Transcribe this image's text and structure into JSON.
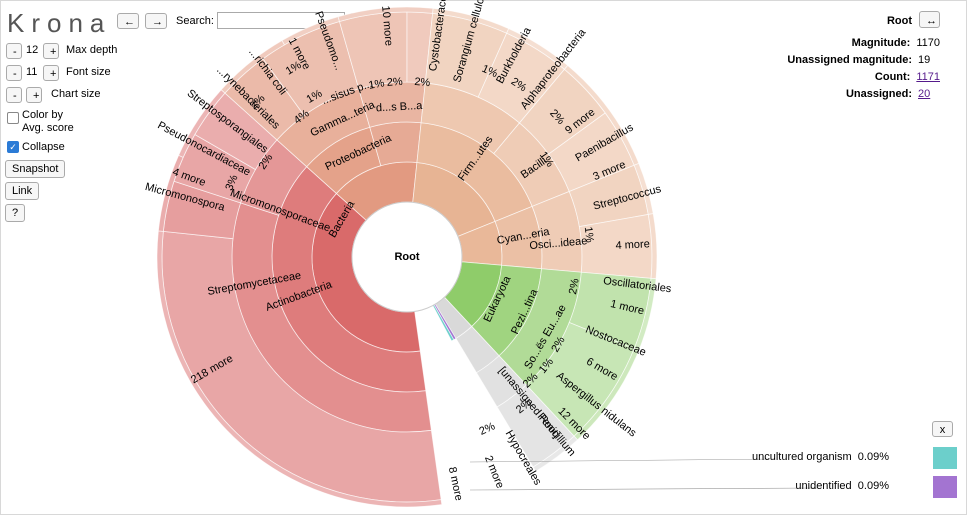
{
  "app": {
    "logo": "Krona"
  },
  "toolbar": {
    "back": "←",
    "forward": "→",
    "search_label": "Search:",
    "search_value": "",
    "search_clear": "x"
  },
  "controls": {
    "max_depth": {
      "label": "Max depth",
      "value": "12",
      "minus": "-",
      "plus": "+"
    },
    "font_size": {
      "label": "Font size",
      "value": "11",
      "minus": "-",
      "plus": "+"
    },
    "chart_size": {
      "label": "Chart size",
      "minus": "-",
      "plus": "+"
    },
    "color_by": {
      "label_line1": "Color by",
      "label_line2": "Avg. score",
      "checked": false
    },
    "collapse": {
      "label": "Collapse",
      "checked": true
    },
    "snapshot": "Snapshot",
    "link": "Link",
    "help": "?"
  },
  "details": {
    "title": "Root",
    "expand": "↔",
    "rows": [
      {
        "key": "Magnitude:",
        "value": "1170",
        "link": false
      },
      {
        "key": "Unassigned magnitude:",
        "value": "19",
        "link": false
      },
      {
        "key": "Count:",
        "value": "1171",
        "link": true
      },
      {
        "key": "Unassigned:",
        "value": "20",
        "link": true
      }
    ]
  },
  "legend": {
    "close": "x",
    "items": [
      {
        "name": "uncultured organism",
        "pct": "0.09%",
        "color": "#6ccfcb"
      },
      {
        "name": "unidentified",
        "pct": "0.09%",
        "color": "#a374d1"
      }
    ]
  },
  "chart_data": {
    "type": "sunburst",
    "center": "Root",
    "colors": {
      "bacteria": "#d96a6a",
      "proteo": "#e0957a",
      "firmi": "#e6b08e",
      "eukaryota": "#8fcc6a",
      "unassigned": "#d9d9d9",
      "purple": "#a374d1",
      "cyan": "#6ccfcb"
    },
    "ring1": [
      {
        "name": "Bacteria",
        "a0": 0,
        "a1": 160,
        "color": "#d96a6a",
        "label": "Bacteria"
      },
      {
        "name": "Eukaryota",
        "a0": 160,
        "a1": 213,
        "color": "#8fcc6a",
        "label": "Eukaryota"
      },
      {
        "name": "unassigned",
        "a0": 213,
        "a1": 360,
        "color": "#d9d9d9",
        "label": ""
      }
    ],
    "labels": [
      {
        "text": "Root",
        "kind": "center"
      },
      {
        "text": "Bacteria"
      },
      {
        "text": "Actinobacteria"
      },
      {
        "text": "Streptomycetaceae"
      },
      {
        "text": "Micromonosporaceae"
      },
      {
        "text": "Proteobacteria"
      },
      {
        "text": "Gamma...teria"
      },
      {
        "text": "d...s B...a"
      },
      {
        "text": "Firm...utes"
      },
      {
        "text": "Bacilli"
      },
      {
        "text": "Cyan...eria"
      },
      {
        "text": "Osci...ideae"
      },
      {
        "text": "Eukaryota"
      },
      {
        "text": "Pezi...tina"
      },
      {
        "text": "So...ës Eu...ae"
      },
      {
        "text": "[unassigned Root]"
      },
      {
        "text": "218 more"
      },
      {
        "text": "Micromonospora"
      },
      {
        "text": "4 more"
      },
      {
        "text": "Pseudonocardiaceae"
      },
      {
        "text": "Streptosporangiales"
      },
      {
        "text": "...rynebacteriales"
      },
      {
        "text": "...richia coli"
      },
      {
        "text": "1 more"
      },
      {
        "text": "Pseudomo..."
      },
      {
        "text": "10 more"
      },
      {
        "text": "Cystobacteraceae"
      },
      {
        "text": "Sorangium cellulosum"
      },
      {
        "text": "Burkholderia"
      },
      {
        "text": "Alphaproteobacteria"
      },
      {
        "text": "9 more"
      },
      {
        "text": "Paenibacillus"
      },
      {
        "text": "3 more"
      },
      {
        "text": "Streptococcus"
      },
      {
        "text": "4 more"
      },
      {
        "text": "Oscillatoriales"
      },
      {
        "text": "1 more"
      },
      {
        "text": "Nostocaceae"
      },
      {
        "text": "6 more"
      },
      {
        "text": "Aspergillus nidulans"
      },
      {
        "text": "12 more"
      },
      {
        "text": "Penicillium"
      },
      {
        "text": "Hypocreales"
      },
      {
        "text": "2 more"
      },
      {
        "text": "8 more"
      },
      {
        "text": "...sisus p..."
      },
      {
        "text": "4%"
      },
      {
        "text": "2%"
      },
      {
        "text": "3%"
      },
      {
        "text": "1%"
      },
      {
        "text": "1%"
      },
      {
        "text": "2%"
      },
      {
        "text": "2%"
      },
      {
        "text": "1%"
      },
      {
        "text": "1%"
      },
      {
        "text": "2%"
      },
      {
        "text": "2%"
      },
      {
        "text": "1%"
      },
      {
        "text": "2%"
      },
      {
        "text": "2%"
      },
      {
        "text": "2%"
      },
      {
        "text": "1%"
      },
      {
        "text": "2%"
      },
      {
        "text": "1%"
      },
      {
        "text": "2%"
      },
      {
        "text": "2%"
      }
    ]
  }
}
